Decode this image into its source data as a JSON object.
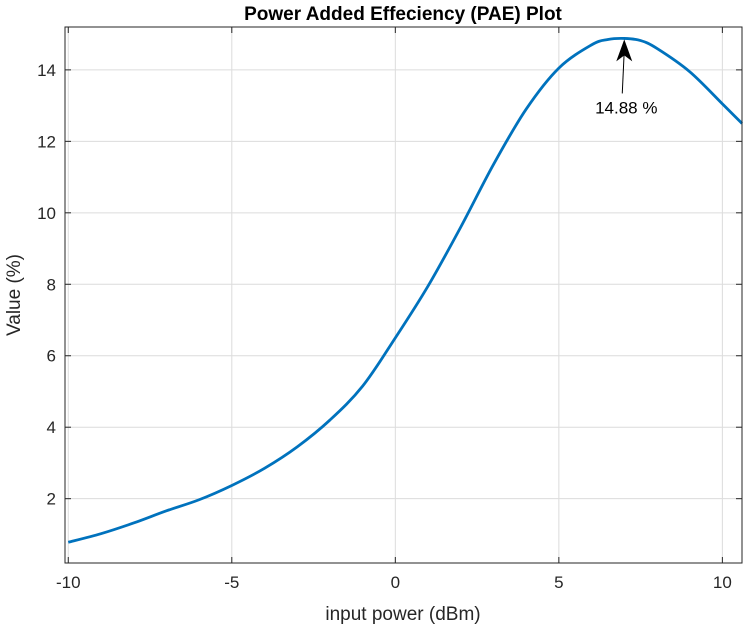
{
  "chart_data": {
    "type": "line",
    "title": "Power Added Effeciency (PAE) Plot",
    "xlabel": "input power (dBm)",
    "ylabel": "Value (%)",
    "xlim": [
      -10.1,
      10.6
    ],
    "ylim": [
      0.2,
      15.2
    ],
    "xticks": [
      -10,
      -5,
      0,
      5,
      10
    ],
    "xtick_labels": [
      "-10",
      "-5",
      "0",
      "5",
      "10"
    ],
    "yticks": [
      2,
      4,
      6,
      8,
      10,
      12,
      14
    ],
    "ytick_labels": [
      "2",
      "4",
      "6",
      "8",
      "10",
      "12",
      "14"
    ],
    "grid": true,
    "series": [
      {
        "color": "#0072BD",
        "x": [
          -10,
          -9,
          -8,
          -7,
          -6,
          -5,
          -4,
          -3,
          -2,
          -1,
          0,
          1,
          2,
          3,
          4,
          5,
          6,
          6.5,
          7,
          7.5,
          8,
          9,
          10,
          10.6
        ],
        "y": [
          0.78,
          1.02,
          1.32,
          1.66,
          1.97,
          2.37,
          2.85,
          3.45,
          4.2,
          5.15,
          6.5,
          7.95,
          9.6,
          11.35,
          12.9,
          14.05,
          14.7,
          14.85,
          14.88,
          14.82,
          14.6,
          13.95,
          13.05,
          12.5
        ]
      }
    ],
    "annotations": [
      {
        "text": "14.88 %",
        "x": 7.0,
        "y": 14.88
      }
    ]
  }
}
